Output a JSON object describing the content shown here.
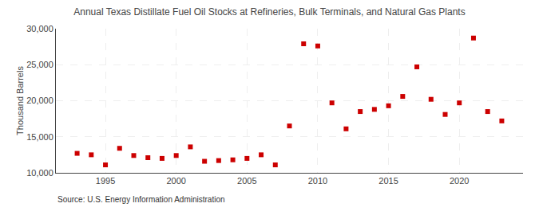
{
  "chart_data": {
    "type": "scatter",
    "title": "Annual Texas Distillate Fuel Oil Stocks at Refineries, Bulk Terminals, and Natural Gas Plants",
    "ylabel": "Thousand Barrels",
    "annotations": [
      "Source: U.S. Energy Information Administration"
    ],
    "x": [
      1993,
      1994,
      1995,
      1996,
      1997,
      1998,
      1999,
      2000,
      2001,
      2002,
      2003,
      2004,
      2005,
      2006,
      2007,
      2008,
      2009,
      2010,
      2011,
      2012,
      2013,
      2014,
      2015,
      2016,
      2017,
      2018,
      2019,
      2020,
      2021,
      2022,
      2023
    ],
    "values": [
      12700,
      12500,
      11100,
      13400,
      12400,
      12100,
      12000,
      12400,
      13600,
      11600,
      11700,
      11800,
      12000,
      12500,
      11100,
      16500,
      27900,
      27600,
      19700,
      16100,
      18500,
      18800,
      19300,
      20600,
      24700,
      20200,
      18100,
      19700,
      28700,
      18500,
      17200
    ],
    "color": "#cc0000",
    "marker": "square",
    "xlim": [
      1991.5,
      2024.5
    ],
    "ylim": [
      10000,
      30000
    ],
    "xticks": [
      1995,
      2000,
      2005,
      2010,
      2015,
      2020
    ],
    "yticks": [
      {
        "value": 10000,
        "label": "10,000"
      },
      {
        "value": 15000,
        "label": "15,000"
      },
      {
        "value": 20000,
        "label": "20,000"
      },
      {
        "value": 25000,
        "label": "25,000"
      },
      {
        "value": 30000,
        "label": "30,000"
      }
    ],
    "grid": true
  }
}
